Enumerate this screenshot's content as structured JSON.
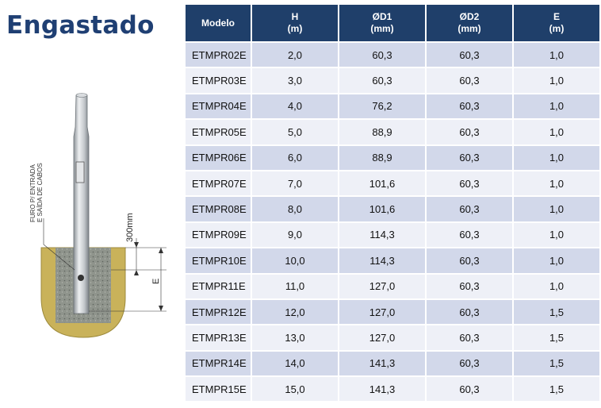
{
  "title": "Engastado",
  "drawing": {
    "note_line1": "FURO P/ ENTRADA",
    "note_line2": "E SAÍDA DE CABOS",
    "dim_300": "300mm",
    "dim_e": "E"
  },
  "table": {
    "headers": [
      {
        "label": "Modelo",
        "unit": ""
      },
      {
        "label": "H",
        "unit": "(m)"
      },
      {
        "label": "ØD1",
        "unit": "(mm)"
      },
      {
        "label": "ØD2",
        "unit": "(mm)"
      },
      {
        "label": "E",
        "unit": "(m)"
      }
    ],
    "rows": [
      [
        "ETMPR02E",
        "2,0",
        "60,3",
        "60,3",
        "1,0"
      ],
      [
        "ETMPR03E",
        "3,0",
        "60,3",
        "60,3",
        "1,0"
      ],
      [
        "ETMPR04E",
        "4,0",
        "76,2",
        "60,3",
        "1,0"
      ],
      [
        "ETMPR05E",
        "5,0",
        "88,9",
        "60,3",
        "1,0"
      ],
      [
        "ETMPR06E",
        "6,0",
        "88,9",
        "60,3",
        "1,0"
      ],
      [
        "ETMPR07E",
        "7,0",
        "101,6",
        "60,3",
        "1,0"
      ],
      [
        "ETMPR08E",
        "8,0",
        "101,6",
        "60,3",
        "1,0"
      ],
      [
        "ETMPR09E",
        "9,0",
        "114,3",
        "60,3",
        "1,0"
      ],
      [
        "ETMPR10E",
        "10,0",
        "114,3",
        "60,3",
        "1,0"
      ],
      [
        "ETMPR11E",
        "11,0",
        "127,0",
        "60,3",
        "1,0"
      ],
      [
        "ETMPR12E",
        "12,0",
        "127,0",
        "60,3",
        "1,5"
      ],
      [
        "ETMPR13E",
        "13,0",
        "127,0",
        "60,3",
        "1,5"
      ],
      [
        "ETMPR14E",
        "14,0",
        "141,3",
        "60,3",
        "1,5"
      ],
      [
        "ETMPR15E",
        "15,0",
        "141,3",
        "60,3",
        "1,5"
      ]
    ]
  },
  "colors": {
    "header_bg": "#1f3f6a",
    "row_dark": "#d2d8ea",
    "row_light": "#eef0f7",
    "title": "#1f3f73"
  }
}
